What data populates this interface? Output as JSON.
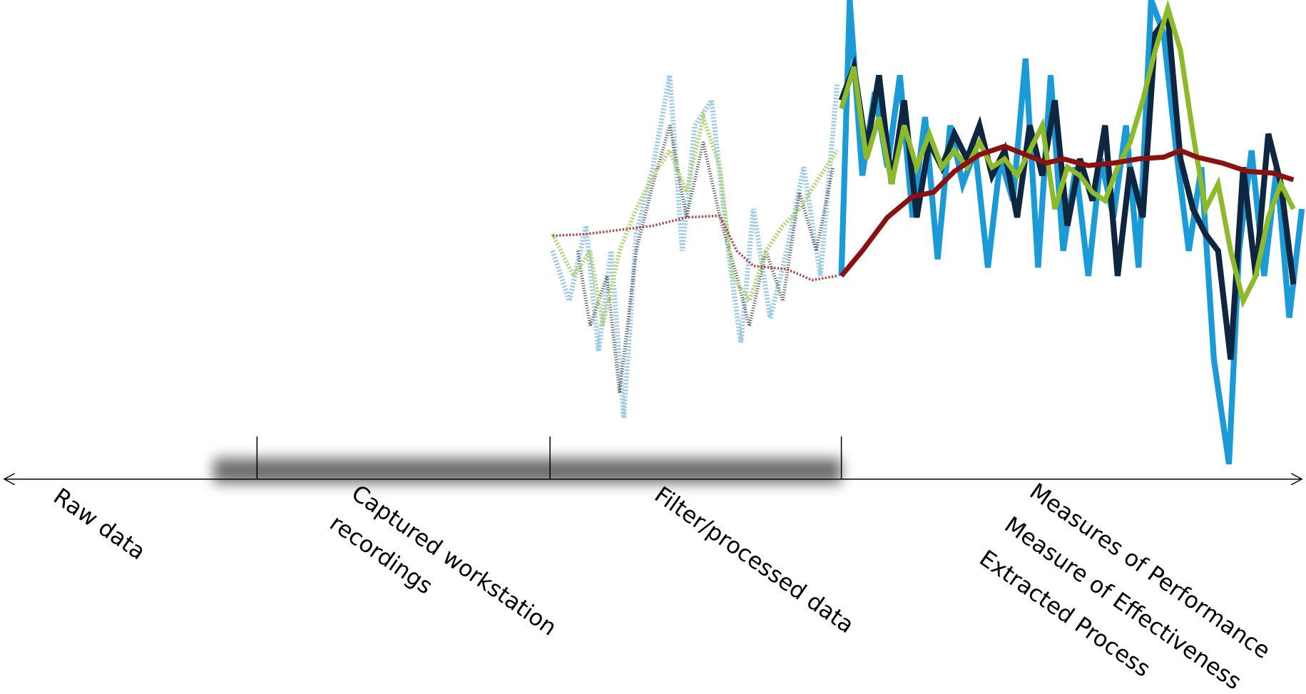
{
  "stages": [
    {
      "lines": [
        "Raw data"
      ]
    },
    {
      "lines": [
        "Captured workstation",
        "recordings"
      ]
    },
    {
      "lines": [
        "Filter/processed data"
      ]
    },
    {
      "lines": [
        "Measures of Performance",
        "Measure of Effectiveness",
        "Extracted Process"
      ]
    }
  ]
}
